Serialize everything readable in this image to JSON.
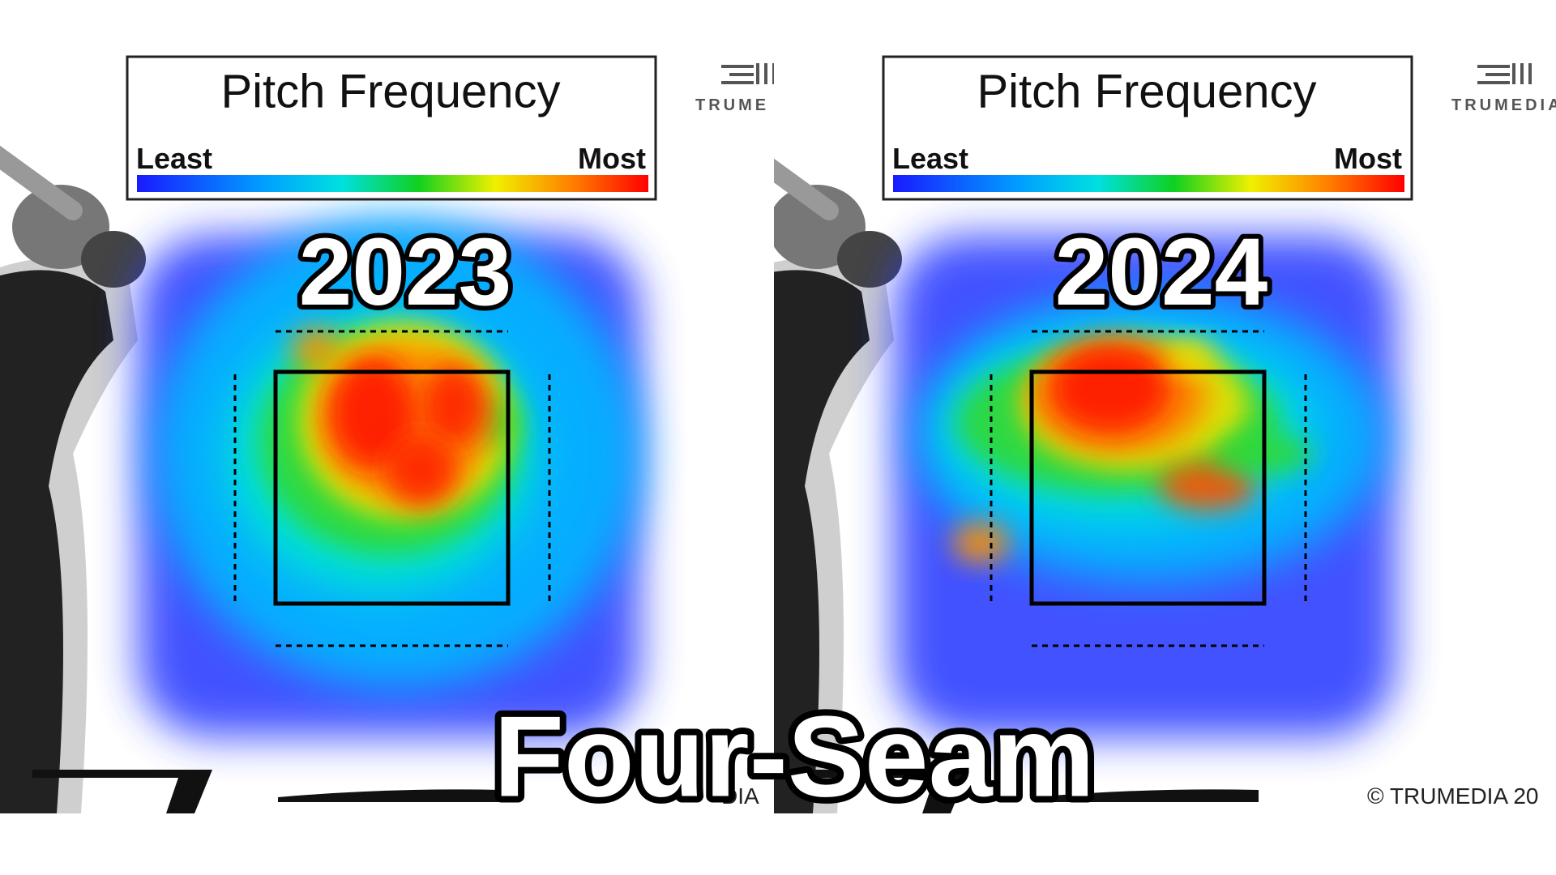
{
  "panels": [
    {
      "legend": {
        "title": "Pitch Frequency",
        "low": "Least",
        "high": "Most"
      },
      "logo": "TRUME",
      "year": "2023",
      "footer": "DIA"
    },
    {
      "legend": {
        "title": "Pitch Frequency",
        "low": "Least",
        "high": "Most"
      },
      "logo": "TRUMEDIA",
      "year": "2024",
      "footer": "© TRUMEDIA 20"
    }
  ],
  "caption": "Four-Seam"
}
